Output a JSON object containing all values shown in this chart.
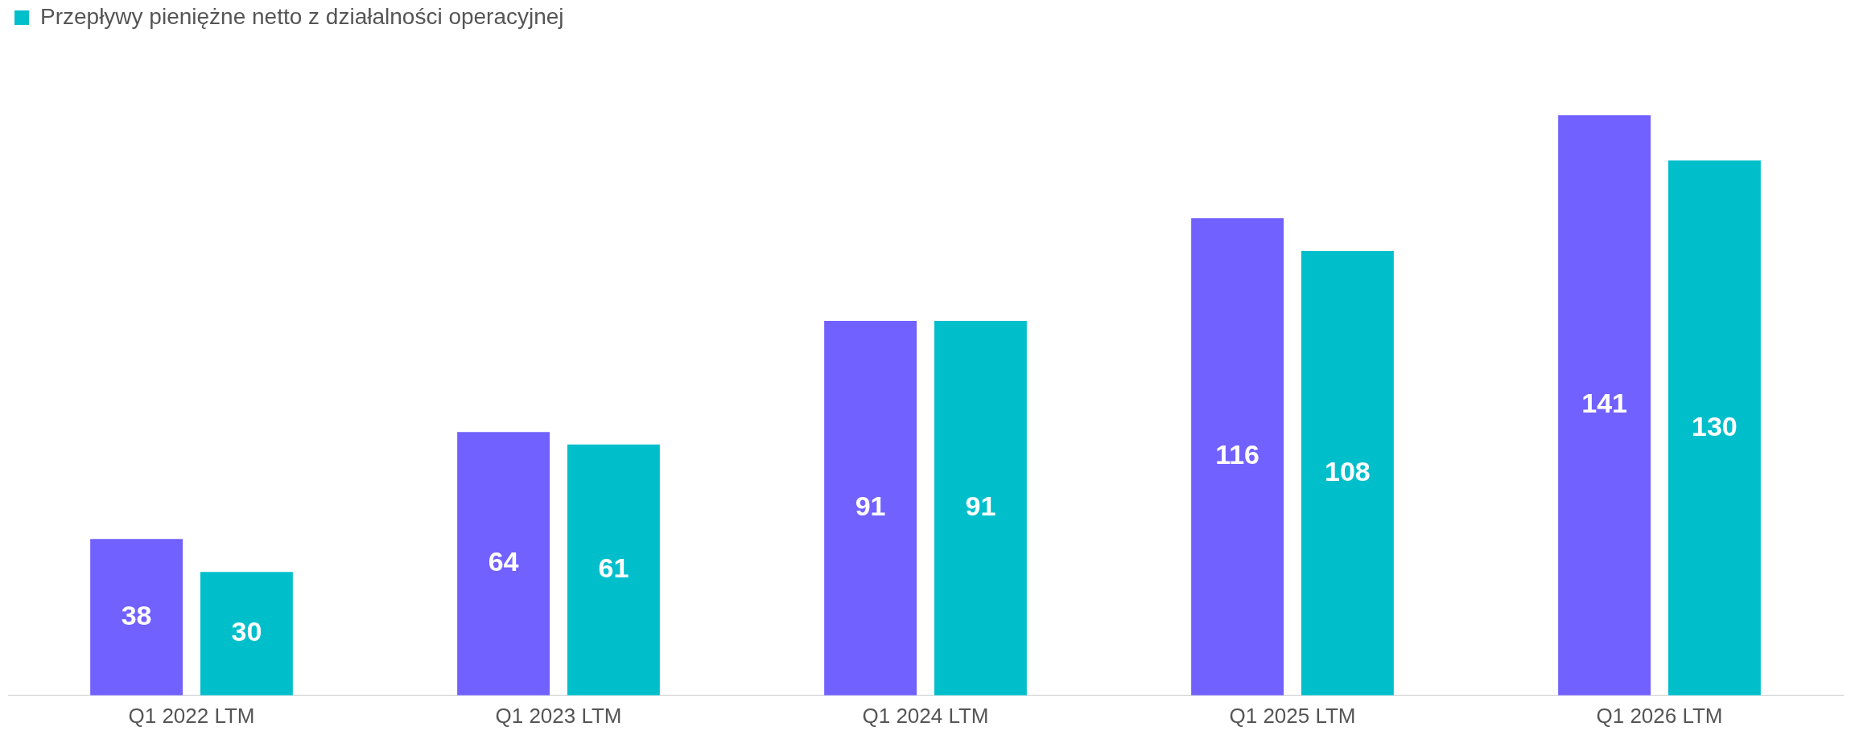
{
  "chart_data": {
    "type": "bar",
    "categories": [
      "Q1 2022 LTM",
      "Q1 2023 LTM",
      "Q1 2024 LTM",
      "Q1 2025 LTM",
      "Q1 2026 LTM"
    ],
    "series": [
      {
        "color": "#7161ff",
        "values": [
          38,
          64,
          91,
          116,
          141
        ]
      },
      {
        "name": "Przepływy pieniężne netto z działalności operacyjnej",
        "color": "#00bfcb",
        "values": [
          30,
          61,
          91,
          108,
          130
        ]
      }
    ],
    "data_labels": true,
    "legend": "top left",
    "grid": false
  }
}
